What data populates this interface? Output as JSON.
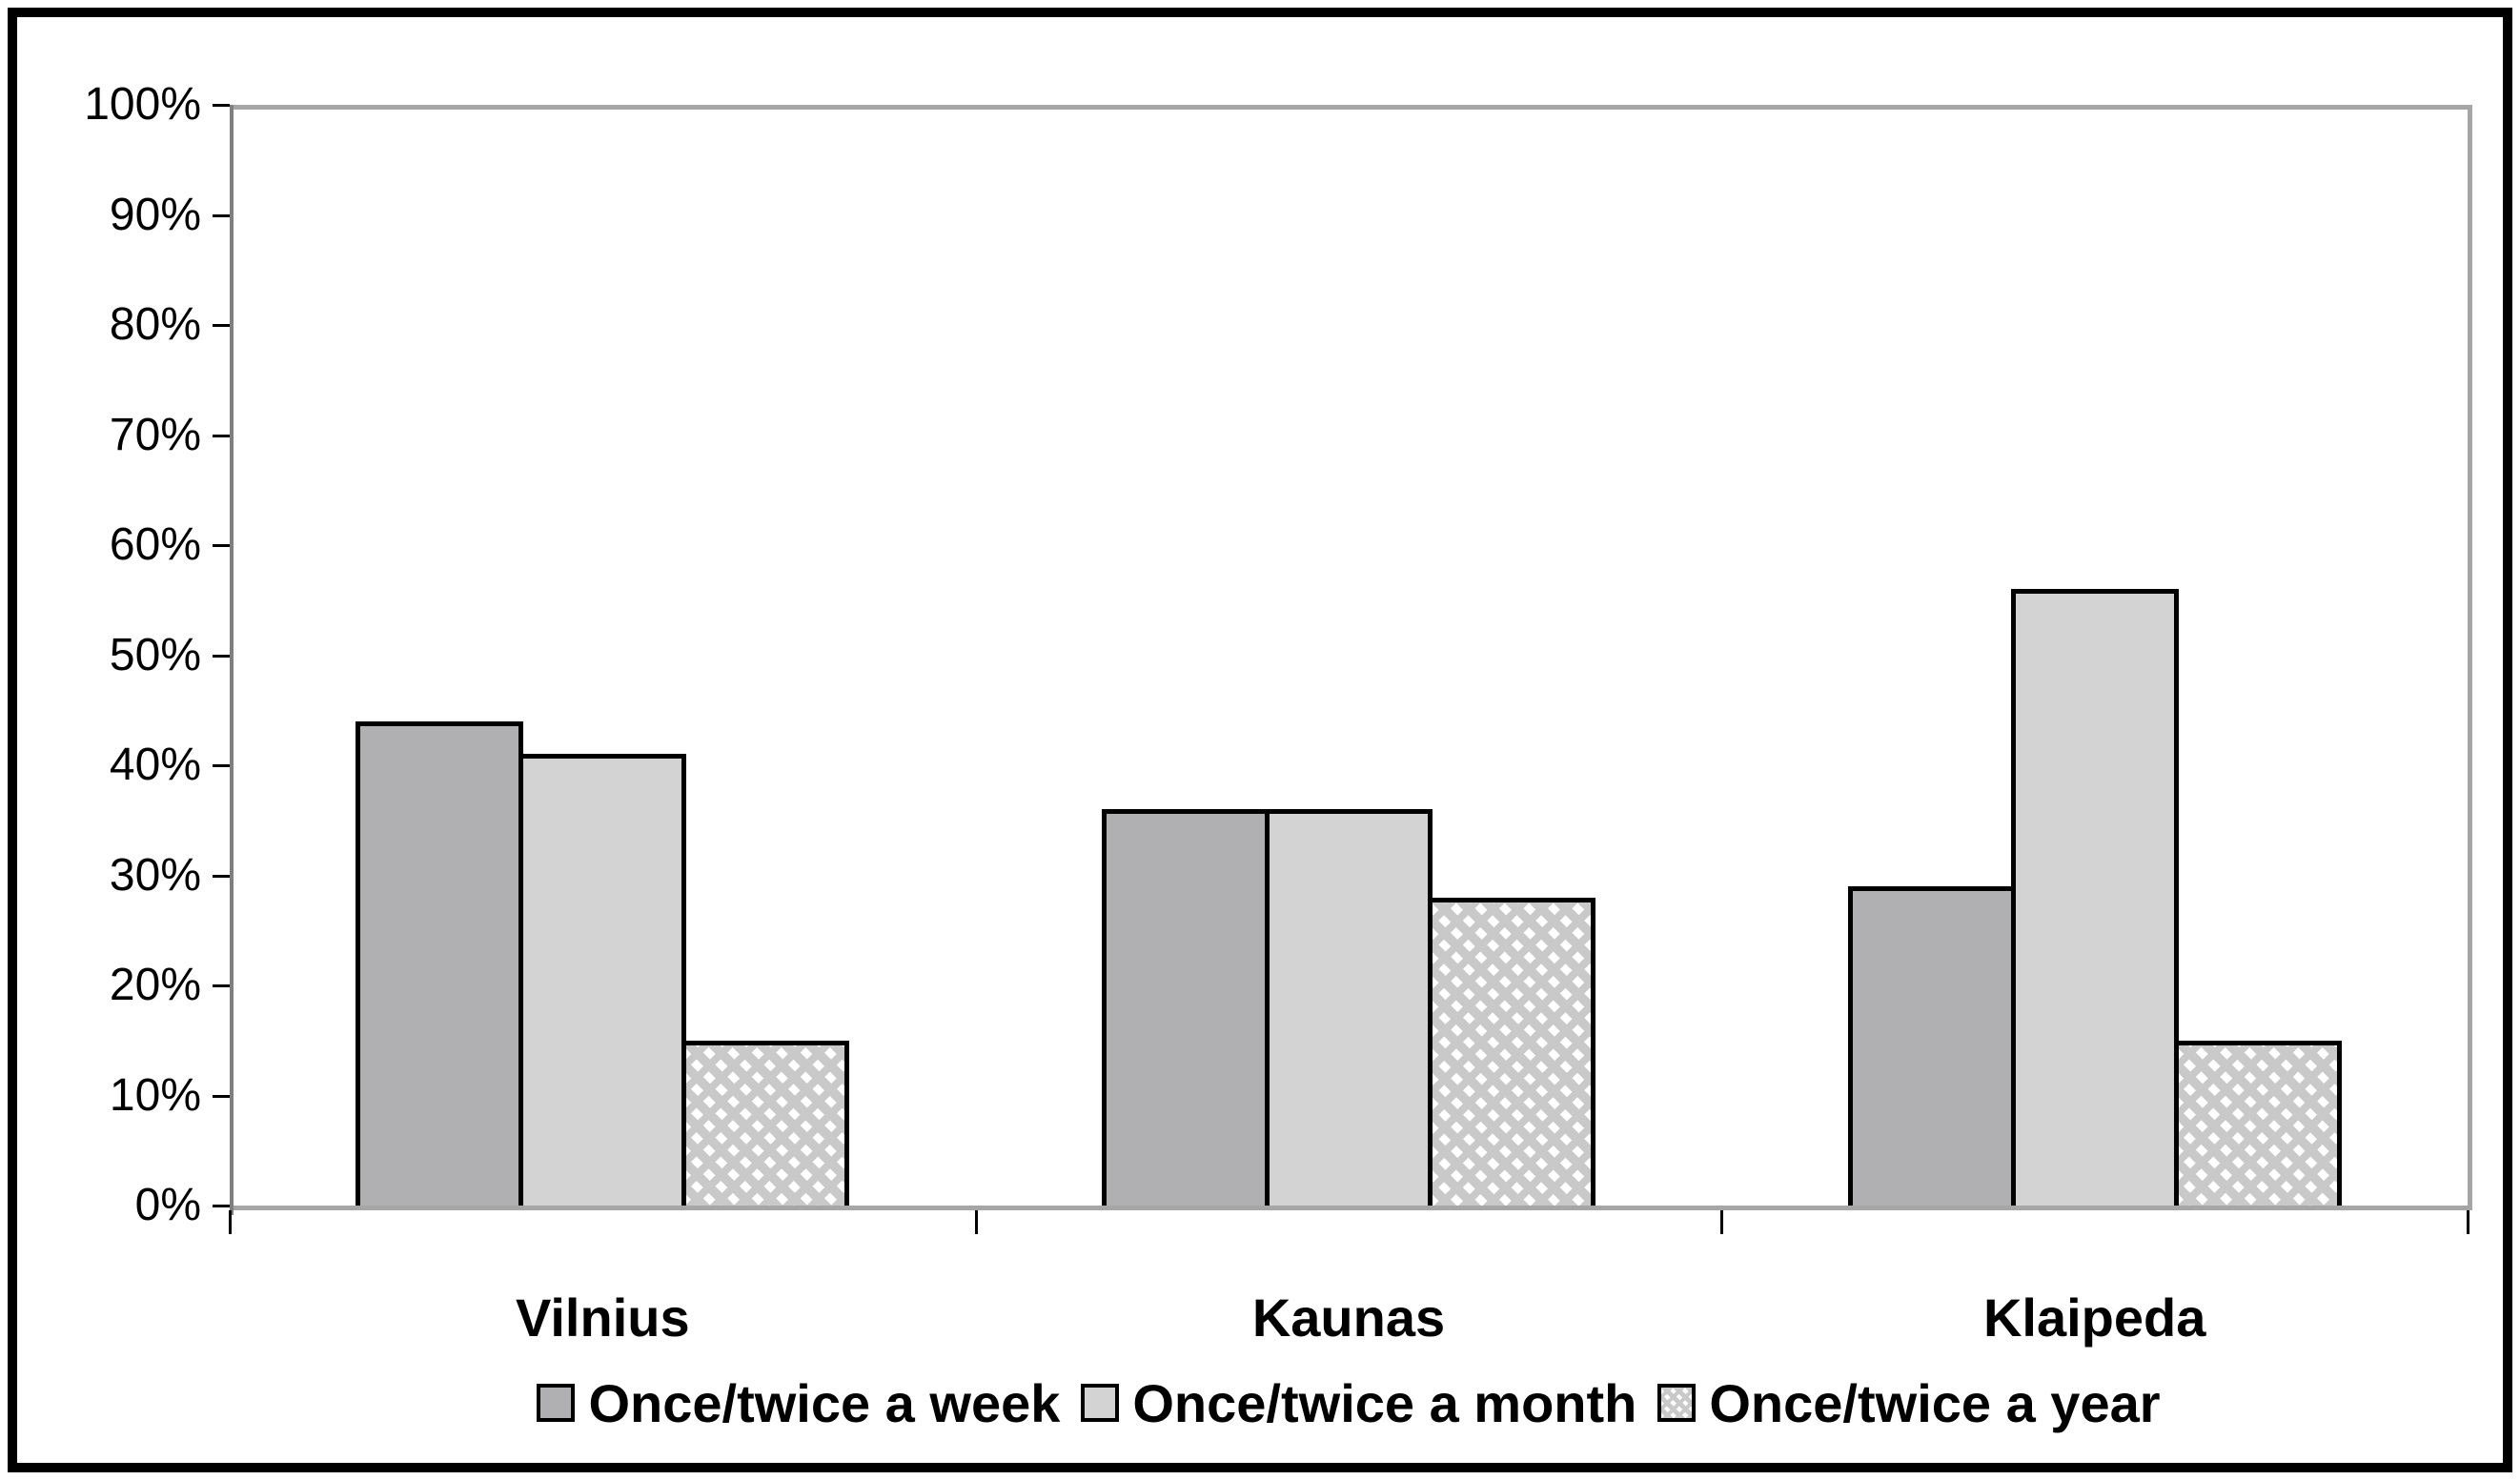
{
  "chart_data": {
    "type": "bar",
    "title": "",
    "xlabel": "",
    "ylabel": "",
    "categories": [
      "Vilnius",
      "Kaunas",
      "Klaipeda"
    ],
    "series": [
      {
        "name": "Once/twice a week",
        "values": [
          44,
          36,
          29
        ],
        "fill": "#b0b0b2",
        "pattern": "solid"
      },
      {
        "name": "Once/twice a month",
        "values": [
          41,
          36,
          56
        ],
        "fill": "#d3d3d3",
        "pattern": "solid"
      },
      {
        "name": "Once/twice a year",
        "values": [
          15,
          28,
          15
        ],
        "fill": "#c9c9c9",
        "pattern": "diagonal-hatch"
      }
    ],
    "ylim": [
      0,
      100
    ],
    "ytick_step": 10,
    "ytick_labels": [
      "0%",
      "10%",
      "20%",
      "30%",
      "40%",
      "50%",
      "60%",
      "70%",
      "80%",
      "90%",
      "100%"
    ],
    "grid": false,
    "legend_position": "bottom"
  },
  "colors": {
    "plot_frame": "#a6a6a6",
    "y_axis": "#7f7f7f",
    "bar_border": "#000000",
    "text": "#000000",
    "outer_border": "#000000",
    "hatch_background": "#c9c9c9",
    "hatch_stripe": "#ffffff"
  }
}
